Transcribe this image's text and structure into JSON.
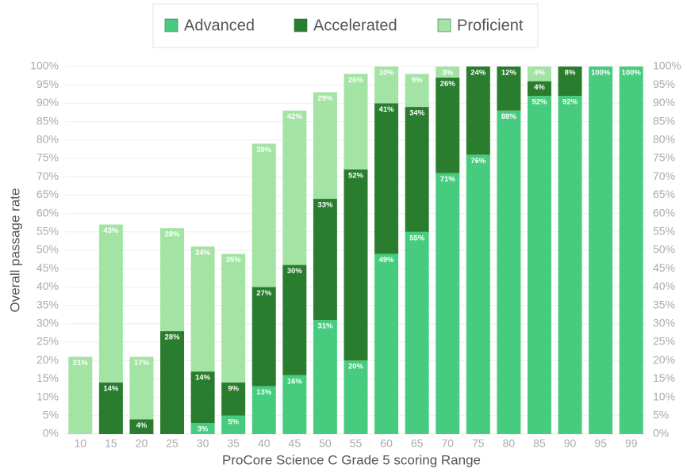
{
  "chart_data": {
    "type": "stacked_bar",
    "x_label": "ProCore Science C Grade 5 scoring Range",
    "y_label": "Overall passage rate",
    "categories": [
      "10",
      "15",
      "20",
      "25",
      "30",
      "35",
      "40",
      "45",
      "50",
      "55",
      "60",
      "65",
      "70",
      "75",
      "80",
      "85",
      "90",
      "95",
      "99"
    ],
    "series": [
      {
        "name": "Advanced",
        "color": "#47cc7f",
        "values": [
          null,
          null,
          null,
          null,
          3,
          5,
          13,
          16,
          31,
          20,
          49,
          55,
          71,
          76,
          88,
          92,
          92,
          100,
          100
        ],
        "value_labels": [
          null,
          null,
          null,
          null,
          "3%",
          "5%",
          "13%",
          "16%",
          "31%",
          "20%",
          "49%",
          "55%",
          "71%",
          "76%",
          "88%",
          "92%",
          "92%",
          "100%",
          "100%"
        ]
      },
      {
        "name": "Accelerated",
        "color": "#2a7d2e",
        "values": [
          null,
          14,
          4,
          28,
          14,
          9,
          27,
          30,
          33,
          52,
          41,
          34,
          26,
          24,
          12,
          4,
          8,
          null,
          null
        ],
        "value_labels": [
          null,
          "14%",
          "4%",
          "28%",
          "14%",
          "9%",
          "27%",
          "30%",
          "33%",
          "52%",
          "41%",
          "34%",
          "26%",
          "24%",
          "12%",
          "4%",
          "8%",
          null,
          null
        ]
      },
      {
        "name": "Proficient",
        "color": "#a3e4a5",
        "values": [
          21,
          43,
          17,
          28,
          34,
          35,
          39,
          42,
          29,
          26,
          10,
          9,
          3,
          null,
          null,
          4,
          null,
          null,
          null
        ],
        "value_labels": [
          "21%",
          "43%",
          "17%",
          "28%",
          "34%",
          "35%",
          "39%",
          "42%",
          "29%",
          "26%",
          "10%",
          "9%",
          "3%",
          null,
          null,
          "4%",
          null,
          null,
          null
        ]
      }
    ],
    "ylim": [
      0,
      100
    ],
    "yticks": [
      {
        "value": 0,
        "label": "0%"
      },
      {
        "value": 5,
        "label": "5%"
      },
      {
        "value": 10,
        "label": "10%"
      },
      {
        "value": 15,
        "label": "15%"
      },
      {
        "value": 20,
        "label": "20%"
      },
      {
        "value": 25,
        "label": "25%"
      },
      {
        "value": 30,
        "label": "30%"
      },
      {
        "value": 35,
        "label": "35%"
      },
      {
        "value": 40,
        "label": "40%"
      },
      {
        "value": 45,
        "label": "45%"
      },
      {
        "value": 50,
        "label": "50%"
      },
      {
        "value": 55,
        "label": "55%"
      },
      {
        "value": 60,
        "label": "60%"
      },
      {
        "value": 65,
        "label": "65%"
      },
      {
        "value": 70,
        "label": "70%"
      },
      {
        "value": 75,
        "label": "75%"
      },
      {
        "value": 80,
        "label": "80%"
      },
      {
        "value": 85,
        "label": "85%"
      },
      {
        "value": 90,
        "label": "90%"
      },
      {
        "value": 95,
        "label": "95%"
      },
      {
        "value": 100,
        "label": "100%"
      }
    ],
    "y2lim": [
      0,
      100
    ],
    "y2ticks": [
      {
        "value": 0,
        "label": "0%"
      },
      {
        "value": 5,
        "label": "5%"
      },
      {
        "value": 10,
        "label": "10%"
      },
      {
        "value": 15,
        "label": "15%"
      },
      {
        "value": 20,
        "label": "20%"
      },
      {
        "value": 25,
        "label": "25%"
      },
      {
        "value": 30,
        "label": "30%"
      },
      {
        "value": 35,
        "label": "35%"
      },
      {
        "value": 40,
        "label": "40%"
      },
      {
        "value": 45,
        "label": "45%"
      },
      {
        "value": 50,
        "label": "50%"
      },
      {
        "value": 55,
        "label": "55%"
      },
      {
        "value": 60,
        "label": "60%"
      },
      {
        "value": 65,
        "label": "65%"
      },
      {
        "value": 70,
        "label": "70%"
      },
      {
        "value": 75,
        "label": "75%"
      },
      {
        "value": 80,
        "label": "80%"
      },
      {
        "value": 85,
        "label": "85%"
      },
      {
        "value": 90,
        "label": "90%"
      },
      {
        "value": 95,
        "label": "95%"
      },
      {
        "value": 100,
        "label": "100%"
      }
    ],
    "grid": true,
    "legend": "top"
  }
}
